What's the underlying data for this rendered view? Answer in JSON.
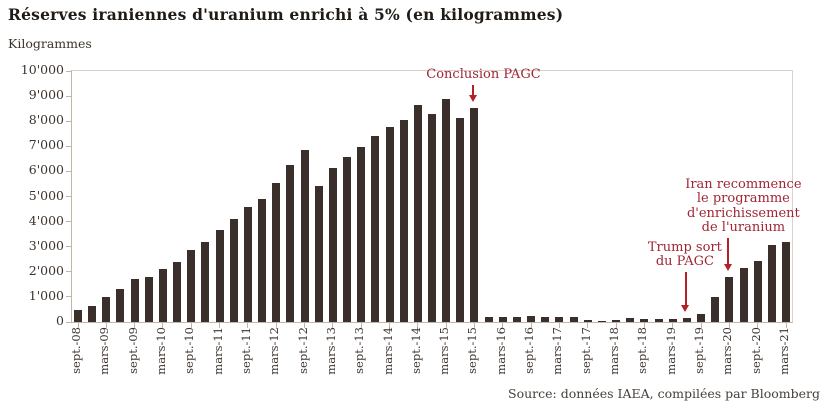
{
  "header": {
    "title": "Réserves iraniennes d'uranium enrichi à 5% (en kilogrammes)",
    "unit_label": "Kilogrammes"
  },
  "footer": {
    "source": "Source: données IAEA, compilées par Bloomberg"
  },
  "colors": {
    "bar": "#3a2f2b",
    "annotation_text": "#a02634",
    "annotation_arrow": "#b22028",
    "axis": "#c2b5a9",
    "frame": "#dbd1c8",
    "text": "#3c332d",
    "title": "#211b16",
    "background": "#ffffff"
  },
  "chart_data": {
    "type": "bar",
    "title": "Réserves iraniennes d'uranium enrichi à 5% (en kilogrammes)",
    "xlabel": "",
    "ylabel": "Kilogrammes",
    "ylim": [
      0,
      10000
    ],
    "grid": "frame-only",
    "legend": null,
    "bar_period": "quarterly",
    "y_tick_labels": [
      "0",
      "1'000",
      "2'000",
      "3'000",
      "4'000",
      "5'000",
      "6'000",
      "7'000",
      "8'000",
      "9'000",
      "10'000"
    ],
    "x_tick_labels": [
      "sept.-08",
      "mars-09",
      "sept.-09",
      "mars-10",
      "sept.-10",
      "mars-11",
      "sept.-11",
      "mars-12",
      "sept.-12",
      "mars-13",
      "sept.-13",
      "mars-14",
      "sept.-14",
      "mars-15",
      "sept.-15",
      "mars-16",
      "sept.-16",
      "mars-17",
      "sept.-17",
      "mars-18",
      "sept.-18",
      "mars-19",
      "sept.-19",
      "mars-20",
      "sept.-20",
      "mars-21"
    ],
    "x_tick_every": 2,
    "values": [
      490,
      630,
      990,
      1300,
      1730,
      1810,
      2120,
      2410,
      2870,
      3170,
      3670,
      4100,
      4570,
      4910,
      5550,
      6260,
      6870,
      5410,
      6130,
      6560,
      6990,
      7410,
      7770,
      8030,
      8640,
      8270,
      8890,
      8110,
      8540,
      200,
      200,
      200,
      220,
      200,
      200,
      200,
      90,
      60,
      90,
      160,
      110,
      120,
      110,
      170,
      320,
      990,
      1810,
      2150,
      2420,
      3060,
      3170
    ],
    "annotations": [
      {
        "id": "conclusion-pagc",
        "lines": [
          "Conclusion PAGC"
        ],
        "bar_index": 28,
        "arrow_len": 17,
        "text_dx": 10
      },
      {
        "id": "trump-sort-du-pagc",
        "lines": [
          "Trump sort",
          "du PAGC"
        ],
        "bar_index": 43,
        "arrow_len": 40,
        "text_dx": -1
      },
      {
        "id": "iran-recommence",
        "lines": [
          "Iran recommence",
          "le programme",
          "d'enrichissement",
          "de l'uranium"
        ],
        "bar_index": 46,
        "arrow_len": 33,
        "text_dx": 15
      }
    ]
  }
}
